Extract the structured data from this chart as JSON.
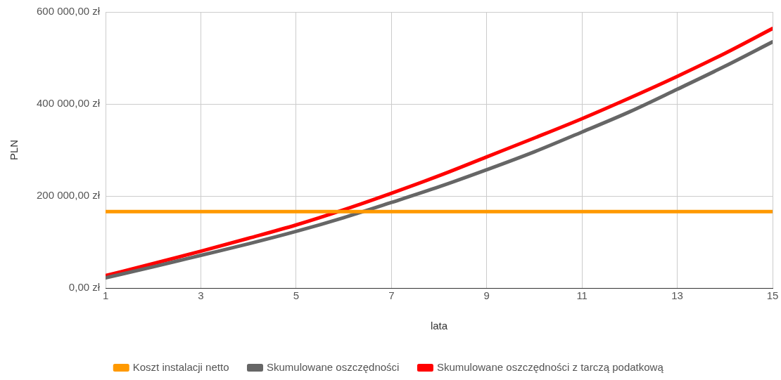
{
  "chart_data": {
    "type": "line",
    "xlabel": "lata",
    "ylabel": "PLN",
    "x": [
      1,
      2,
      3,
      4,
      5,
      6,
      7,
      8,
      9,
      10,
      11,
      12,
      13,
      14,
      15
    ],
    "series": [
      {
        "name": "Koszt instalacji netto",
        "color": "#ff9900",
        "values": [
          166000,
          166000,
          166000,
          166000,
          166000,
          166000,
          166000,
          166000,
          166000,
          166000,
          166000,
          166000,
          166000,
          166000,
          166000
        ]
      },
      {
        "name": "Skumulowane oszczędności",
        "color": "#666666",
        "values": [
          22000,
          46000,
          71000,
          96000,
          123000,
          153000,
          186000,
          220000,
          257000,
          296000,
          339000,
          383000,
          432000,
          482000,
          535000
        ]
      },
      {
        "name": "Skumulowane oszczędności z tarczą podatkową",
        "color": "#ff0000",
        "values": [
          27000,
          53000,
          80000,
          108000,
          137000,
          170000,
          206000,
          244000,
          285000,
          326000,
          368000,
          413000,
          460000,
          510000,
          564000
        ]
      }
    ],
    "xlim": [
      1,
      15
    ],
    "xticks": [
      1,
      3,
      5,
      7,
      9,
      11,
      13,
      15
    ],
    "ylim": [
      0,
      600000
    ],
    "yticks": [
      {
        "value": 0,
        "label": "0,00 zł"
      },
      {
        "value": 200000,
        "label": "200 000,00 zł"
      },
      {
        "value": 400000,
        "label": "400 000,00 zł"
      },
      {
        "value": 600000,
        "label": "600 000,00 zł"
      }
    ],
    "grid": true,
    "legend": "bottom",
    "marker": "none",
    "line_style": "solid"
  }
}
